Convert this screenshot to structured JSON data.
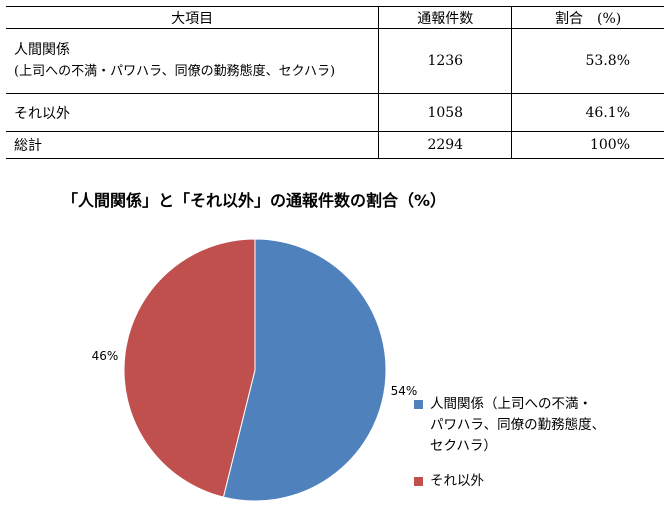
{
  "table": {
    "headers": [
      "大項目",
      "通報件数",
      "割合　(%)"
    ],
    "rows": [
      {
        "category": "人間関係",
        "category_note": "(上司への不満・パワハラ、同僚の勤務態度、セクハラ)",
        "count": "1236",
        "percent": "53.8%"
      },
      {
        "category": "それ以外",
        "count": "1058",
        "percent": "46.1%"
      },
      {
        "category": "総計",
        "count": "2294",
        "percent": "100%"
      }
    ]
  },
  "chart_data": {
    "type": "pie",
    "title": "「人間関係」と「それ以外」の通報件数の割合（%）",
    "slices": [
      {
        "name": "人間関係（上司への不満・パワハラ、同僚の勤務態度、セクハラ）",
        "value": 1236,
        "label": "54%",
        "color": "#4F81BD"
      },
      {
        "name": "それ以外",
        "value": 1058,
        "label": "46%",
        "color": "#C0504D"
      }
    ],
    "legend_position": "right"
  },
  "legend": {
    "item_1_lines": [
      "人間関係（上司への不満・",
      "パワハラ、同僚の勤務態度、",
      "セクハラ）"
    ],
    "item_2": "それ以外"
  }
}
